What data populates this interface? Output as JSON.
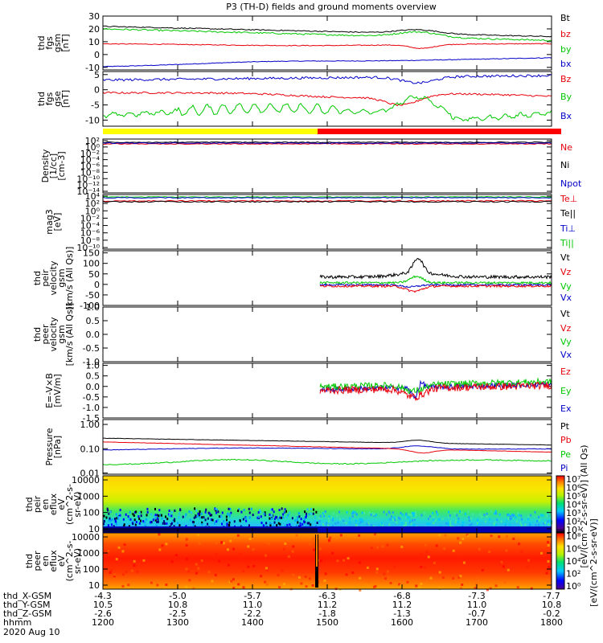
{
  "chart_data": {
    "type": "line",
    "title": "P3 (TH-D) fields and ground moments overview",
    "panels": [
      {
        "id": "fgs_gsm",
        "ylabel": [
          "thd",
          "fgs",
          "gsm",
          "[nT]"
        ],
        "yticks": [
          30,
          20,
          10,
          0,
          -10
        ],
        "ylim": [
          -12,
          30
        ],
        "series": [
          {
            "name": "Bt",
            "color": "#000000"
          },
          {
            "name": "bz",
            "color": "#e8000b"
          },
          {
            "name": "by",
            "color": "#00c800"
          },
          {
            "name": "bx",
            "color": "#0000c8"
          }
        ]
      },
      {
        "id": "fgs_gse",
        "ylabel": [
          "thd",
          "fgs",
          "gse",
          "[nT]"
        ],
        "yticks": [
          5,
          0,
          -5,
          -10
        ],
        "ylim": [
          -12,
          6
        ],
        "series": [
          {
            "name": "Bz",
            "color": "#e8000b"
          },
          {
            "name": "By",
            "color": "#00c800"
          },
          {
            "name": "Bx",
            "color": "#0000c8"
          }
        ]
      },
      {
        "id": "density",
        "ylabel": [
          "Density",
          "[1/cc]",
          "[cm-3]"
        ],
        "yticks": [
          "10²",
          "10⁰",
          "10⁻²",
          "10⁻⁴",
          "10⁻⁶",
          "10⁻⁸",
          "10⁻¹⁰",
          "10⁻¹²",
          "10⁻¹⁴"
        ],
        "series": [
          {
            "name": "Ne",
            "color": "#e8000b"
          },
          {
            "name": "Ni",
            "color": "#000000"
          },
          {
            "name": "Npot",
            "color": "#0000c8"
          }
        ]
      },
      {
        "id": "temp",
        "ylabel": [
          "mag3",
          "[eV]"
        ],
        "yticks": [
          "10⁴",
          "10²",
          "10⁰",
          "10⁻²",
          "10⁻⁴",
          "10⁻⁶",
          "10⁻⁸",
          "10⁻¹⁰"
        ],
        "series": [
          {
            "name": "Te⊥",
            "color": "#e8000b"
          },
          {
            "name": "Te||",
            "color": "#000000"
          },
          {
            "name": "Ti⊥",
            "color": "#0000c8"
          },
          {
            "name": "Ti||",
            "color": "#00c800"
          }
        ]
      },
      {
        "id": "peir_vel",
        "ylabel": [
          "thd",
          "peir",
          "velocity",
          "gsm",
          "[km/s (All Qs)]"
        ],
        "yticks": [
          150,
          100,
          50,
          0,
          -50,
          -100
        ],
        "ylim": [
          -100,
          160
        ],
        "series": [
          {
            "name": "Vt",
            "color": "#000000"
          },
          {
            "name": "Vz",
            "color": "#e8000b"
          },
          {
            "name": "Vy",
            "color": "#00c800"
          },
          {
            "name": "Vx",
            "color": "#0000c8"
          }
        ]
      },
      {
        "id": "peer_vel",
        "ylabel": [
          "thd",
          "peer",
          "velocity",
          "gsm",
          "[km/s (All Qs)]"
        ],
        "yticks": [
          "1.0",
          "0.5",
          "0.0",
          "-0.5",
          "-1.0"
        ],
        "ylim": [
          -1,
          1
        ],
        "series": [
          {
            "name": "Vt",
            "color": "#000000"
          },
          {
            "name": "Vz",
            "color": "#e8000b"
          },
          {
            "name": "Vy",
            "color": "#00c800"
          },
          {
            "name": "Vx",
            "color": "#0000c8"
          }
        ]
      },
      {
        "id": "efield",
        "ylabel": [
          "E=-V×B",
          "[mV/m]"
        ],
        "yticks": [
          "1.0",
          "0.5",
          "0.0",
          "-0.5",
          "-1.0",
          "-1.5"
        ],
        "ylim": [
          -1.5,
          1.1
        ],
        "series": [
          {
            "name": "Ez",
            "color": "#e8000b"
          },
          {
            "name": "Ey",
            "color": "#00c800"
          },
          {
            "name": "Ex",
            "color": "#0000c8"
          }
        ]
      },
      {
        "id": "pressure",
        "ylabel": [
          "Pressure",
          "[nPa]"
        ],
        "yticks": [
          "1.00",
          "0.10",
          "0.01"
        ],
        "series": [
          {
            "name": "Pt",
            "color": "#000000"
          },
          {
            "name": "Pb",
            "color": "#e8000b"
          },
          {
            "name": "Pe",
            "color": "#00c800"
          },
          {
            "name": "Pi",
            "color": "#0000c8"
          }
        ]
      },
      {
        "id": "peir_spec",
        "ylabel": [
          "thd",
          "peir",
          "en",
          "eflux",
          "eV",
          "(cm^2-s-",
          "sr-eV)"
        ],
        "yticks": [
          10000,
          1000,
          100,
          10
        ]
      },
      {
        "id": "peer_spec",
        "ylabel": [
          "thd",
          "peer",
          "en",
          "eflux",
          "eV",
          "(cm^2-s-",
          "sr-eV)"
        ],
        "yticks": [
          10000,
          1000,
          100,
          10
        ]
      }
    ],
    "colorbar_top": {
      "label": "[eV/(cm^2-s-sr-eV)] (All Qs)",
      "ticks": [
        "10⁷",
        "10⁶",
        "10⁵",
        "10⁴",
        "10³",
        "10²",
        "10¹"
      ]
    },
    "colorbar_bottom": {
      "label": "[eV/(cm^2-s-sr-eV)]",
      "ticks": [
        "10⁸",
        "10⁶",
        "10⁴",
        "10²",
        "10⁰"
      ]
    },
    "x_axis": {
      "row_labels": [
        "thd_X-GSM",
        "thd_Y-GSM",
        "thd_Z-GSM",
        "hhmm"
      ],
      "date": "2020 Aug 10",
      "hhmm": [
        "1200",
        "1300",
        "1400",
        "1500",
        "1600",
        "1700",
        "1800"
      ],
      "x_gsm": [
        "-4.3",
        "-5.0",
        "-5.7",
        "-6.3",
        "-6.8",
        "-7.3",
        "-7.7"
      ],
      "y_gsm": [
        "10.5",
        "10.8",
        "11.0",
        "11.2",
        "11.2",
        "11.0",
        "10.8"
      ],
      "z_gsm": [
        "-2.6",
        "-2.5",
        "-2.2",
        "-1.8",
        "-1.3",
        "-0.7",
        "-0.2"
      ]
    }
  }
}
